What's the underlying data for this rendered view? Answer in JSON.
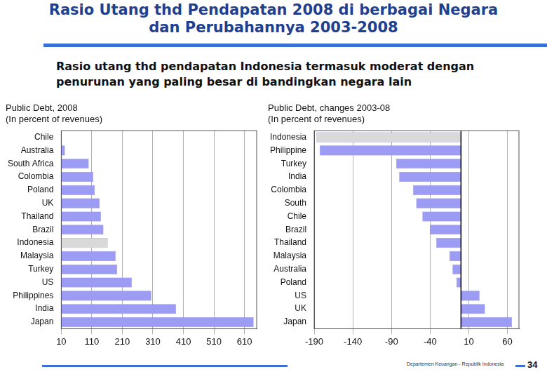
{
  "slide": {
    "title": [
      "Rasio Utang thd Pendapatan 2008 di berbagai Negara",
      "dan Perubahannya 2003-2008"
    ],
    "subtitle": "Rasio utang thd pendapatan Indonesia termasuk moderat dengan penurunan yang paling besar di bandingkan negara lain",
    "footer": "Departemen Keuangan - Republik Indonesia",
    "page": 34
  },
  "chart_data": [
    {
      "type": "bar",
      "orientation": "horizontal",
      "title": [
        "Public Debt, 2008",
        "(In percent of revenues)"
      ],
      "categories": [
        "Chile",
        "Australia",
        "South Africa",
        "Colombia",
        "Poland",
        "UK",
        "Thailand",
        "Brazil",
        "Indonesia",
        "Malaysia",
        "Turkey",
        "US",
        "Philippines",
        "India",
        "Japan"
      ],
      "values": [
        10,
        22,
        100,
        115,
        120,
        136,
        140,
        148,
        162,
        188,
        193,
        241,
        305,
        386,
        640
      ],
      "colors": [
        "#9c9cf4",
        "#9c9cf4",
        "#9c9cf4",
        "#9c9cf4",
        "#9c9cf4",
        "#9c9cf4",
        "#9c9cf4",
        "#9c9cf4",
        "#d9d9d9",
        "#9c9cf4",
        "#9c9cf4",
        "#9c9cf4",
        "#9c9cf4",
        "#9c9cf4",
        "#9c9cf4"
      ],
      "xlim": [
        10,
        650
      ],
      "xticks": [
        10,
        110,
        210,
        310,
        410,
        510,
        610
      ],
      "grid": true
    },
    {
      "type": "bar",
      "orientation": "horizontal",
      "title": [
        "Public Debt, changes 2003-08",
        "(In percent of revenues)"
      ],
      "categories": [
        "Indonesia",
        "Philippine",
        "Turkey",
        "India",
        "Colombia",
        "South",
        "Chile",
        "Brazil",
        "Thailand",
        "Malaysia",
        "Australia",
        "Poland",
        "US",
        "UK",
        "Japan"
      ],
      "values": [
        -187,
        -183,
        -84,
        -80,
        -62,
        -58,
        -50,
        -40,
        -32,
        -15,
        -11,
        -6,
        24,
        31,
        66
      ],
      "colors": [
        "#d9d9d9",
        "#9c9cf4",
        "#9c9cf4",
        "#9c9cf4",
        "#9c9cf4",
        "#9c9cf4",
        "#9c9cf4",
        "#9c9cf4",
        "#9c9cf4",
        "#9c9cf4",
        "#9c9cf4",
        "#9c9cf4",
        "#9c9cf4",
        "#9c9cf4",
        "#9c9cf4"
      ],
      "xlim": [
        -190,
        75
      ],
      "xticks": [
        -190,
        -140,
        -90,
        -40,
        10,
        60
      ],
      "grid": true
    }
  ]
}
